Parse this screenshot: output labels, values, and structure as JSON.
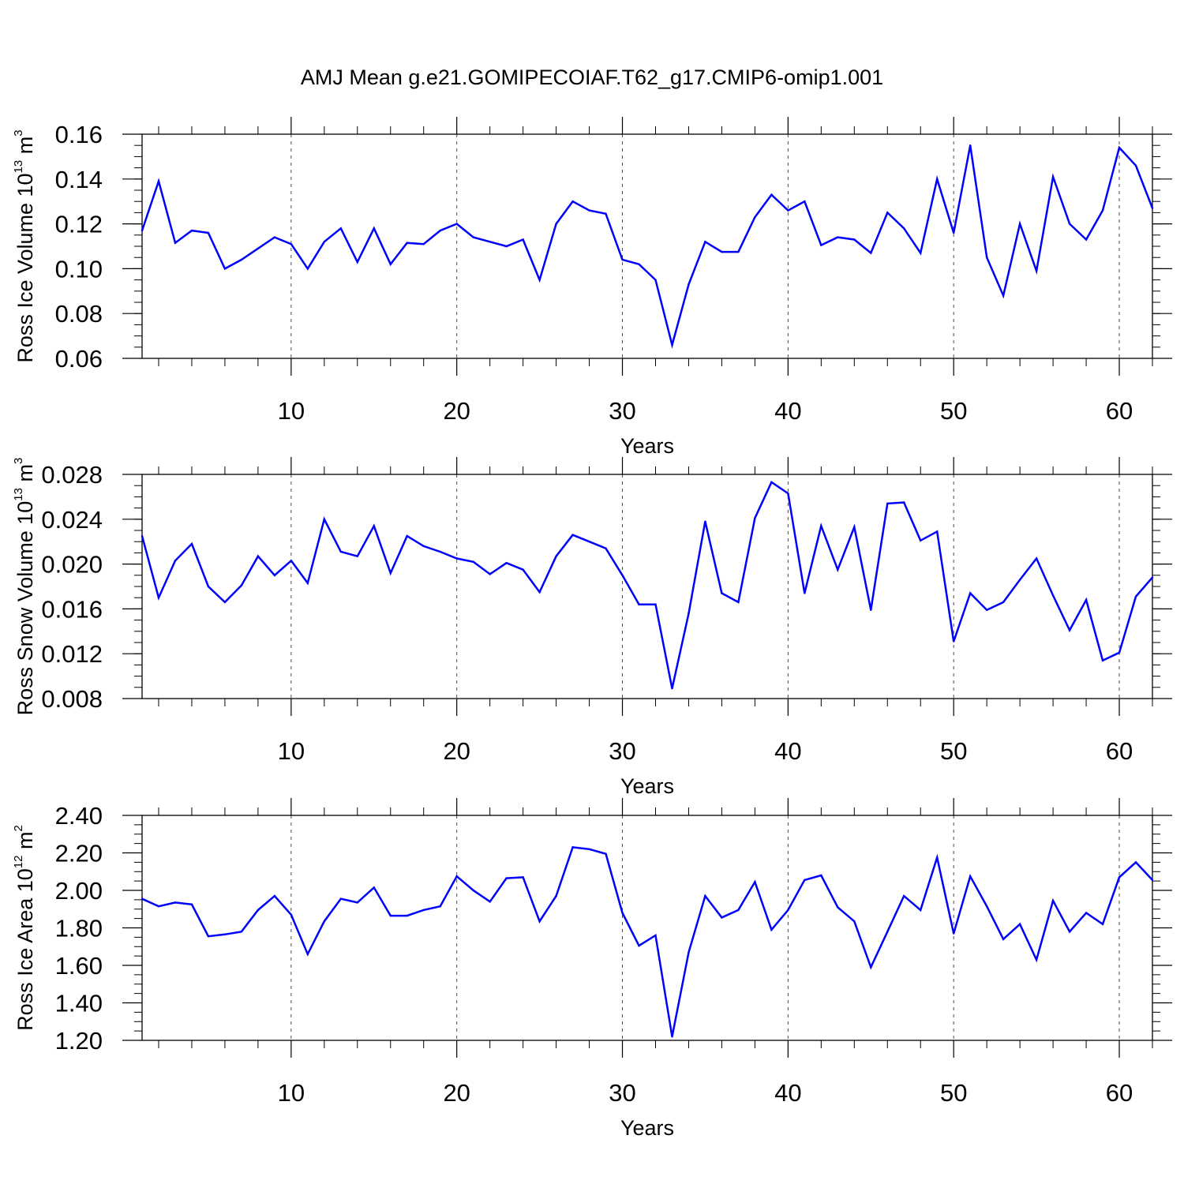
{
  "title": "AMJ Mean g.e21.GOMIPECOIAF.T62_g17.CMIP6-omip1.001",
  "line_color": "#0000ff",
  "chart_data": [
    {
      "type": "line",
      "series_name": "Ross Ice Volume",
      "ylabel": {
        "text": "Ross Ice Volume 10",
        "exp": "13",
        "unit": " m",
        "unit_exp": "3"
      },
      "xlabel": "Years",
      "xlim": [
        1,
        62
      ],
      "ylim": [
        0.06,
        0.16
      ],
      "yticks": [
        0.06,
        0.08,
        0.1,
        0.12,
        0.14,
        0.16
      ],
      "ytick_labels": [
        "0.06",
        "0.08",
        "0.10",
        "0.12",
        "0.14",
        "0.16"
      ],
      "y_minor_step": 0.005,
      "xticks": [
        10,
        20,
        30,
        40,
        50,
        60
      ],
      "xtick_labels": [
        "10",
        "20",
        "30",
        "40",
        "50",
        "60"
      ],
      "vgrid": [
        10,
        20,
        30,
        40,
        50,
        60
      ],
      "x": [
        1,
        2,
        3,
        4,
        5,
        6,
        7,
        8,
        9,
        10,
        11,
        12,
        13,
        14,
        15,
        16,
        17,
        18,
        19,
        20,
        21,
        22,
        23,
        24,
        25,
        26,
        27,
        28,
        29,
        30,
        31,
        32,
        33,
        34,
        35,
        36,
        37,
        38,
        39,
        40,
        41,
        42,
        43,
        44,
        45,
        46,
        47,
        48,
        49,
        50,
        51,
        52,
        53,
        54,
        55,
        56,
        57,
        58,
        59,
        60,
        61,
        62
      ],
      "values": [
        0.117,
        0.139,
        0.1115,
        0.117,
        0.116,
        0.1,
        0.104,
        0.109,
        0.114,
        0.111,
        0.1,
        0.112,
        0.118,
        0.103,
        0.118,
        0.102,
        0.1115,
        0.111,
        0.117,
        0.12,
        0.114,
        0.112,
        0.11,
        0.113,
        0.095,
        0.12,
        0.13,
        0.126,
        0.1245,
        0.104,
        0.102,
        0.095,
        0.066,
        0.093,
        0.112,
        0.1075,
        0.1075,
        0.123,
        0.133,
        0.126,
        0.13,
        0.1105,
        0.114,
        0.113,
        0.107,
        0.125,
        0.118,
        0.107,
        0.14,
        0.116,
        0.155,
        0.105,
        0.088,
        0.12,
        0.099,
        0.141,
        0.12,
        0.113,
        0.126,
        0.154,
        0.146,
        0.127
      ]
    },
    {
      "type": "line",
      "series_name": "Ross Snow Volume",
      "ylabel": {
        "text": "Ross Snow Volume 10",
        "exp": "13",
        "unit": " m",
        "unit_exp": "3"
      },
      "xlabel": "Years",
      "xlim": [
        1,
        62
      ],
      "ylim": [
        0.008,
        0.028
      ],
      "yticks": [
        0.008,
        0.012,
        0.016,
        0.02,
        0.024,
        0.028
      ],
      "ytick_labels": [
        "0.008",
        "0.012",
        "0.016",
        "0.020",
        "0.024",
        "0.028"
      ],
      "y_minor_step": 0.001,
      "xticks": [
        10,
        20,
        30,
        40,
        50,
        60
      ],
      "xtick_labels": [
        "10",
        "20",
        "30",
        "40",
        "50",
        "60"
      ],
      "vgrid": [
        10,
        20,
        30,
        40,
        50,
        60
      ],
      "x": [
        1,
        2,
        3,
        4,
        5,
        6,
        7,
        8,
        9,
        10,
        11,
        12,
        13,
        14,
        15,
        16,
        17,
        18,
        19,
        20,
        21,
        22,
        23,
        24,
        25,
        26,
        27,
        28,
        29,
        30,
        31,
        32,
        33,
        34,
        35,
        36,
        37,
        38,
        39,
        40,
        41,
        42,
        43,
        44,
        45,
        46,
        47,
        48,
        49,
        50,
        51,
        52,
        53,
        54,
        55,
        56,
        57,
        58,
        59,
        60,
        61,
        62
      ],
      "values": [
        0.0225,
        0.017,
        0.0203,
        0.0218,
        0.018,
        0.0166,
        0.0181,
        0.0207,
        0.019,
        0.0203,
        0.0183,
        0.024,
        0.0211,
        0.0207,
        0.0234,
        0.0192,
        0.0225,
        0.0216,
        0.0211,
        0.0205,
        0.0202,
        0.0191,
        0.0201,
        0.0195,
        0.0175,
        0.0207,
        0.0226,
        0.022,
        0.0214,
        0.019,
        0.0164,
        0.0164,
        0.0089,
        0.0156,
        0.0238,
        0.0174,
        0.0166,
        0.0241,
        0.0273,
        0.0263,
        0.0174,
        0.0234,
        0.0195,
        0.0233,
        0.0159,
        0.0254,
        0.0255,
        0.0221,
        0.0229,
        0.0131,
        0.0174,
        0.0159,
        0.0166,
        0.0186,
        0.0205,
        0.0172,
        0.0141,
        0.0168,
        0.0114,
        0.0121,
        0.0171,
        0.0188
      ]
    },
    {
      "type": "line",
      "series_name": "Ross Ice Area",
      "ylabel": {
        "text": "Ross Ice Area 10",
        "exp": "12",
        "unit": " m",
        "unit_exp": "2"
      },
      "xlabel": "Years",
      "xlim": [
        1,
        62
      ],
      "ylim": [
        1.2,
        2.4
      ],
      "yticks": [
        1.2,
        1.4,
        1.6,
        1.8,
        2.0,
        2.2,
        2.4
      ],
      "ytick_labels": [
        "1.20",
        "1.40",
        "1.60",
        "1.80",
        "2.00",
        "2.20",
        "2.40"
      ],
      "y_minor_step": 0.05,
      "xticks": [
        10,
        20,
        30,
        40,
        50,
        60
      ],
      "xtick_labels": [
        "10",
        "20",
        "30",
        "40",
        "50",
        "60"
      ],
      "vgrid": [
        10,
        20,
        30,
        40,
        50,
        60
      ],
      "x": [
        1,
        2,
        3,
        4,
        5,
        6,
        7,
        8,
        9,
        10,
        11,
        12,
        13,
        14,
        15,
        16,
        17,
        18,
        19,
        20,
        21,
        22,
        23,
        24,
        25,
        26,
        27,
        28,
        29,
        30,
        31,
        32,
        33,
        34,
        35,
        36,
        37,
        38,
        39,
        40,
        41,
        42,
        43,
        44,
        45,
        46,
        47,
        48,
        49,
        50,
        51,
        52,
        53,
        54,
        55,
        56,
        57,
        58,
        59,
        60,
        61,
        62
      ],
      "values": [
        1.955,
        1.915,
        1.935,
        1.925,
        1.755,
        1.765,
        1.78,
        1.895,
        1.97,
        1.87,
        1.66,
        1.835,
        1.955,
        1.935,
        2.015,
        1.865,
        1.865,
        1.895,
        1.915,
        2.075,
        2.0,
        1.94,
        2.065,
        2.07,
        1.835,
        1.97,
        2.23,
        2.22,
        2.195,
        1.88,
        1.705,
        1.76,
        1.22,
        1.67,
        1.97,
        1.855,
        1.895,
        2.045,
        1.79,
        1.895,
        2.055,
        2.08,
        1.91,
        1.835,
        1.59,
        1.78,
        1.97,
        1.895,
        2.175,
        1.77,
        2.075,
        1.915,
        1.74,
        1.82,
        1.63,
        1.945,
        1.78,
        1.88,
        1.82,
        2.07,
        2.15,
        2.055
      ]
    }
  ]
}
